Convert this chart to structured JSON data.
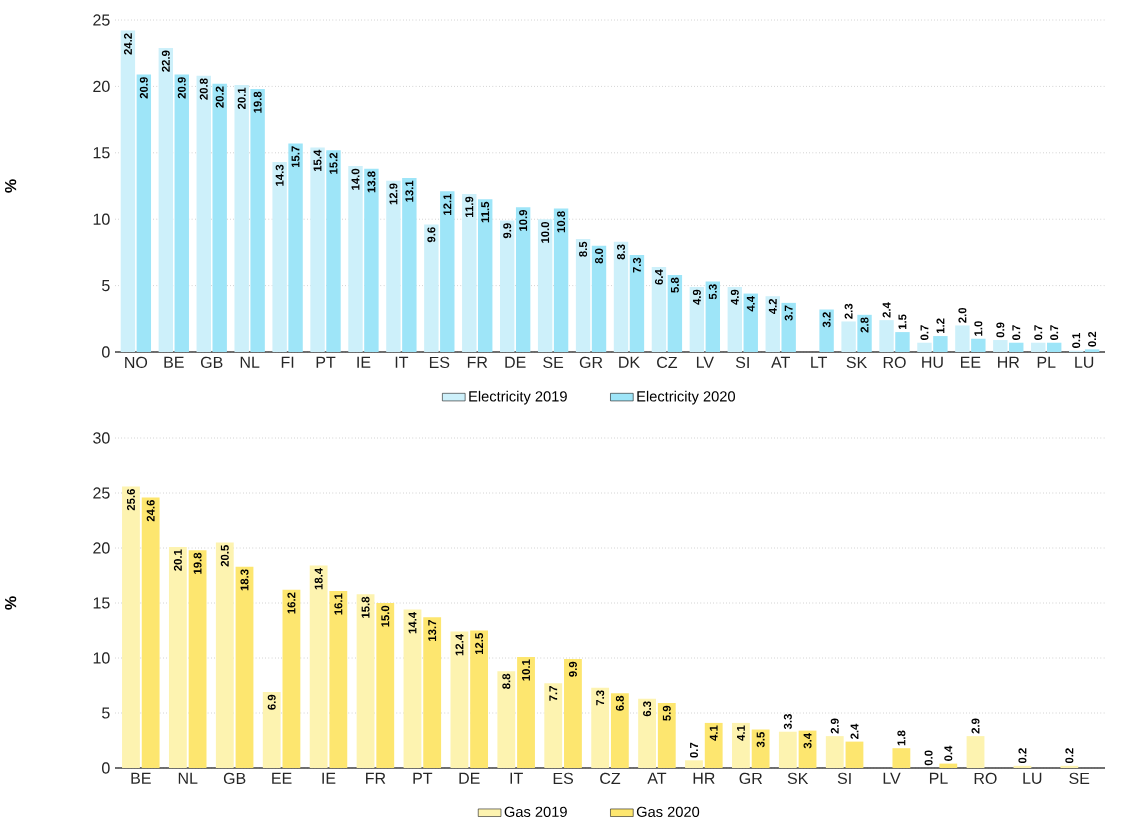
{
  "chart_data": [
    {
      "type": "bar",
      "ylabel": "%",
      "ylim": [
        0,
        25
      ],
      "yticks": [
        0,
        5,
        10,
        15,
        20,
        25
      ],
      "grid": "y",
      "legend": "bottom",
      "categories": [
        "NO",
        "BE",
        "GB",
        "NL",
        "FI",
        "PT",
        "IE",
        "IT",
        "ES",
        "FR",
        "DE",
        "SE",
        "GR",
        "DK",
        "CZ",
        "LV",
        "SI",
        "AT",
        "LT",
        "SK",
        "RO",
        "HU",
        "EE",
        "HR",
        "PL",
        "LU"
      ],
      "series": [
        {
          "name": "Electricity 2019",
          "color": "#cdf0fa",
          "values": [
            24.2,
            22.9,
            20.8,
            20.1,
            14.3,
            15.4,
            14.0,
            12.9,
            9.6,
            11.9,
            9.9,
            10.0,
            8.5,
            8.3,
            6.4,
            4.9,
            4.9,
            4.2,
            null,
            2.3,
            2.4,
            0.7,
            2.0,
            0.9,
            0.7,
            0.1
          ],
          "value_labels": [
            "24.2",
            "22.9",
            "20.8",
            "20.1",
            "14.3",
            "15.4",
            "14.0",
            "12.9",
            "9.6",
            "11.9",
            "9.9",
            "10.0",
            "8.5",
            "8.3",
            "6.4",
            "4.9",
            "4.9",
            "4.2",
            null,
            "2.3",
            "2.4",
            "0.7",
            "2.0",
            "0.9",
            "0.7",
            "0.1"
          ]
        },
        {
          "name": "Electricity 2020",
          "color": "#9ee5f8",
          "values": [
            20.9,
            20.9,
            20.2,
            19.8,
            15.7,
            15.2,
            13.8,
            13.1,
            12.1,
            11.5,
            10.9,
            10.8,
            8.0,
            7.3,
            5.8,
            5.3,
            4.4,
            3.7,
            3.2,
            2.8,
            1.5,
            1.2,
            1.0,
            0.7,
            0.7,
            0.2
          ],
          "value_labels": [
            "20.9",
            "20.9",
            "20.2",
            "19.8",
            "15.7",
            "15.2",
            "13.8",
            "13.1",
            "12.1",
            "11.5",
            "10.9",
            "10.8",
            "8.0",
            "7.3",
            "5.8",
            "5.3",
            "4.4",
            "3.7",
            "3.2",
            "2.8",
            "1.5",
            "1.2",
            "1.0",
            "0.7",
            "0.7",
            "0.2"
          ]
        }
      ]
    },
    {
      "type": "bar",
      "ylabel": "%",
      "ylim": [
        0,
        30
      ],
      "yticks": [
        0,
        5,
        10,
        15,
        20,
        25,
        30
      ],
      "grid": "y",
      "legend": "bottom",
      "categories": [
        "BE",
        "NL",
        "GB",
        "EE",
        "IE",
        "FR",
        "PT",
        "DE",
        "IT",
        "ES",
        "CZ",
        "AT",
        "HR",
        "GR",
        "SK",
        "SI",
        "LV",
        "PL",
        "RO",
        "LU",
        "SE"
      ],
      "series": [
        {
          "name": "Gas 2019",
          "color": "#fdf3b0",
          "values": [
            25.6,
            20.1,
            20.5,
            6.9,
            18.4,
            15.8,
            14.4,
            12.4,
            8.8,
            7.7,
            7.3,
            6.3,
            0.7,
            4.1,
            3.3,
            2.9,
            null,
            0.0,
            2.9,
            0.2,
            0.2
          ],
          "value_labels": [
            "25.6",
            "20.1",
            "20.5",
            "6.9",
            "18.4",
            "15.8",
            "14.4",
            "12.4",
            "8.8",
            "7.7",
            "7.3",
            "6.3",
            "0.7",
            "4.1",
            "3.3",
            "2.9",
            null,
            "0.0",
            "2.9",
            "0.2",
            "0.2"
          ]
        },
        {
          "name": "Gas 2020",
          "color": "#fde66f",
          "values": [
            24.6,
            19.8,
            18.3,
            16.2,
            16.1,
            15.0,
            13.7,
            12.5,
            10.1,
            9.9,
            6.8,
            5.9,
            4.1,
            3.5,
            3.4,
            2.4,
            1.8,
            0.4,
            null,
            null,
            null
          ],
          "value_labels": [
            "24.6",
            "19.8",
            "18.3",
            "16.2",
            "16.1",
            "15.0",
            "13.7",
            "12.5",
            "10.1",
            "9.9",
            "6.8",
            "5.9",
            "4.1",
            "3.5",
            "3.4",
            "2.4",
            "1.8",
            "0.4",
            null,
            null,
            null
          ]
        }
      ]
    }
  ]
}
